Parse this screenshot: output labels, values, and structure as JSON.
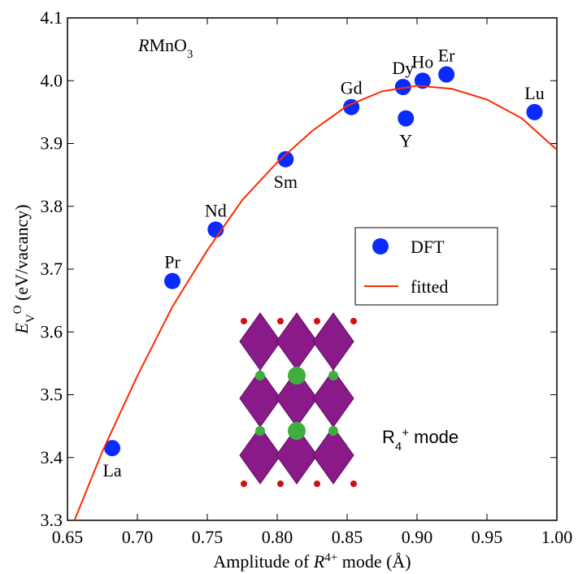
{
  "chart_data": {
    "type": "scatter",
    "annotation": {
      "main": "R",
      "rest": "MnO",
      "sub": "3"
    },
    "inset_label": {
      "main": "R",
      "sub": "4",
      "sup": "+",
      "rest": " mode"
    },
    "xlabel": {
      "pre": "Amplitude of ",
      "main": "R",
      "sup": "4+",
      "rest": " mode (Å)"
    },
    "ylabel": {
      "main": "E",
      "sub": "V",
      "sup": "O",
      "rest": " (eV/vacancy)"
    },
    "xlim": [
      0.65,
      1.0
    ],
    "ylim": [
      3.3,
      4.1
    ],
    "xticks": [
      0.65,
      {
        "value": 0.7,
        "label": "0.70"
      },
      0.75,
      {
        "value": 0.8,
        "label": "0.80"
      },
      0.85,
      {
        "value": 0.9,
        "label": "0.90"
      },
      0.95,
      {
        "value": 1.0,
        "label": "1.00"
      }
    ],
    "yticks": [
      3.3,
      3.4,
      3.5,
      3.6,
      3.7,
      3.8,
      3.9,
      {
        "value": 4.0,
        "label": "4.0"
      },
      4.1
    ],
    "legend": "center right",
    "series": [
      {
        "name": "DFT",
        "type": "scatter",
        "color": "#0a2bff",
        "labels": [
          "La",
          "Pr",
          "Nd",
          "Sm",
          "Gd",
          "Dy",
          "Ho",
          "Er",
          "Y",
          "Lu"
        ],
        "x": [
          0.682,
          0.725,
          0.756,
          0.806,
          0.853,
          0.89,
          0.904,
          0.921,
          0.892,
          0.984
        ],
        "values": [
          3.415,
          3.681,
          3.763,
          3.875,
          3.958,
          3.99,
          4.0,
          4.01,
          3.94,
          3.95
        ]
      },
      {
        "name": "fitted",
        "type": "line",
        "color": "#ff2a00",
        "x": [
          0.655,
          0.675,
          0.7,
          0.725,
          0.75,
          0.775,
          0.8,
          0.825,
          0.85,
          0.875,
          0.9,
          0.925,
          0.95,
          0.975,
          1.0
        ],
        "values": [
          3.3,
          3.41,
          3.53,
          3.64,
          3.73,
          3.81,
          3.87,
          3.92,
          3.96,
          3.983,
          3.992,
          3.987,
          3.97,
          3.94,
          3.89
        ]
      }
    ]
  }
}
